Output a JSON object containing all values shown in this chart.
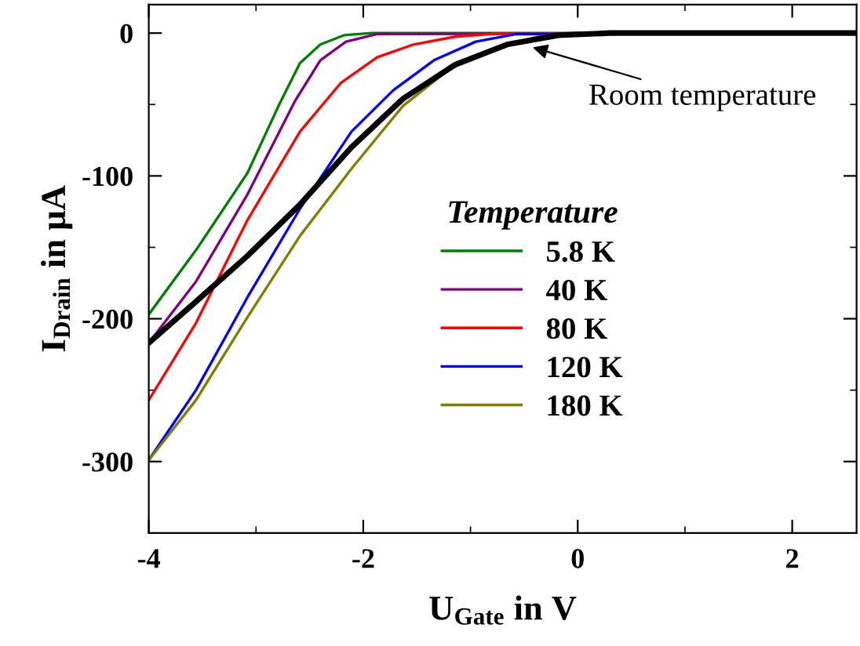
{
  "chart_data": {
    "type": "line",
    "xlabel": "U$_{Gate}$ in V",
    "ylabel": "I$_{Drain}$ in µA",
    "legend_title": "Temperature",
    "legend": "right",
    "grid": false,
    "marker": "none",
    "line_style": "solid",
    "xlim": [
      -4,
      2.6
    ],
    "ylim": [
      -350,
      20
    ],
    "xticks": [
      -4,
      {
        "value": -3,
        "label": null
      },
      -2,
      {
        "value": -1,
        "label": null
      },
      0,
      {
        "value": 1,
        "label": null
      },
      2
    ],
    "yticks": [
      {
        "value": -350,
        "label": null
      },
      -300,
      {
        "value": -250,
        "label": null
      },
      -200,
      {
        "value": -150,
        "label": null
      },
      -100,
      {
        "value": -50,
        "label": null
      },
      0
    ],
    "annotations": [
      {
        "text": "Room temperature",
        "x": -0.42,
        "y": -10
      }
    ],
    "series": [
      {
        "name": "5.8 K",
        "color": "#008000",
        "x": [
          -4.0,
          -3.56,
          -3.08,
          -2.79,
          -2.59,
          -2.4,
          -2.18,
          -1.92,
          2.6
        ],
        "values": [
          -197,
          -152,
          -98,
          -51,
          -21,
          -8,
          -1.5,
          0,
          0
        ]
      },
      {
        "name": "40 K",
        "color": "#800080",
        "x": [
          -4.0,
          -3.56,
          -3.08,
          -2.64,
          -2.4,
          -2.16,
          -1.87,
          2.6
        ],
        "values": [
          -217,
          -174,
          -113,
          -48,
          -19,
          -6,
          -0.7,
          0
        ]
      },
      {
        "name": "80 K",
        "color": "#ff0000",
        "x": [
          -4.0,
          -3.56,
          -3.08,
          -2.59,
          -2.21,
          -1.87,
          -1.53,
          -1.14,
          -0.76,
          2.6
        ],
        "values": [
          -257,
          -203,
          -131,
          -69,
          -35,
          -17,
          -8,
          -2.5,
          -0.4,
          0
        ]
      },
      {
        "name": "120 K",
        "color": "#0000ff",
        "x": [
          -4.0,
          -3.56,
          -3.08,
          -2.59,
          -2.11,
          -1.72,
          -1.34,
          -0.95,
          -0.57,
          2.6
        ],
        "values": [
          -299,
          -250,
          -185,
          -123,
          -69,
          -40,
          -19,
          -6,
          -0.7,
          0
        ]
      },
      {
        "name": "180 K",
        "color": "#808000",
        "x": [
          -4.0,
          -3.56,
          -3.08,
          -2.59,
          -2.11,
          -1.63,
          -1.14,
          -0.76,
          -0.37,
          -0.03,
          2.6
        ],
        "values": [
          -299,
          -257,
          -199,
          -142,
          -95,
          -51,
          -22,
          -10,
          -2.5,
          0,
          0
        ]
      },
      {
        "color": "#000000",
        "x": [
          -4.0,
          -3.56,
          -3.08,
          -2.59,
          -2.11,
          -1.63,
          -1.14,
          -0.66,
          -0.18,
          0.3,
          2.6
        ],
        "values": [
          -217,
          -188,
          -156,
          -120,
          -80,
          -46,
          -22,
          -8,
          -1.5,
          0,
          0
        ]
      }
    ]
  }
}
